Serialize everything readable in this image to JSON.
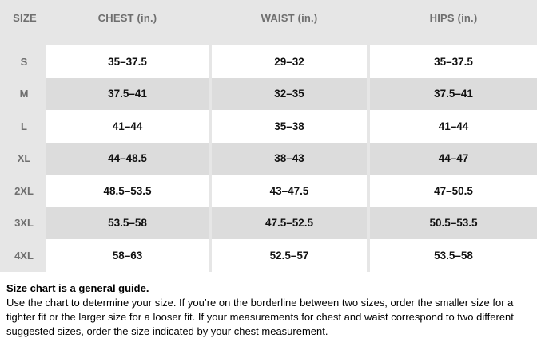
{
  "table": {
    "columns": [
      "SIZE",
      "CHEST (in.)",
      "WAIST (in.)",
      "HIPS (in.)"
    ],
    "rows": [
      {
        "size": "S",
        "chest": "35–37.5",
        "waist": "29–32",
        "hips": "35–37.5"
      },
      {
        "size": "M",
        "chest": "37.5–41",
        "waist": "32–35",
        "hips": "37.5–41"
      },
      {
        "size": "L",
        "chest": "41–44",
        "waist": "35–38",
        "hips": "41–44"
      },
      {
        "size": "XL",
        "chest": "44–48.5",
        "waist": "38–43",
        "hips": "44–47"
      },
      {
        "size": "2XL",
        "chest": "48.5–53.5",
        "waist": "43–47.5",
        "hips": "47–50.5"
      },
      {
        "size": "3XL",
        "chest": "53.5–58",
        "waist": "47.5–52.5",
        "hips": "50.5–53.5"
      },
      {
        "size": "4XL",
        "chest": "58–63",
        "waist": "52.5–57",
        "hips": "53.5–58"
      }
    ]
  },
  "note": {
    "title": "Size chart is a general guide.",
    "body": "Use the chart to determine your size. If you’re on the borderline between two sizes, order the smaller size for a tighter fit or the larger size for a looser fit. If your measurements for chest and waist correspond to two different suggested sizes, order the size indicated by your chest measurement."
  },
  "colors": {
    "header_bg": "#e6e6e6",
    "alt_row_bg": "#dcdcdc",
    "row_bg": "#ffffff",
    "header_text": "#6f6f6f",
    "data_text": "#111111"
  }
}
